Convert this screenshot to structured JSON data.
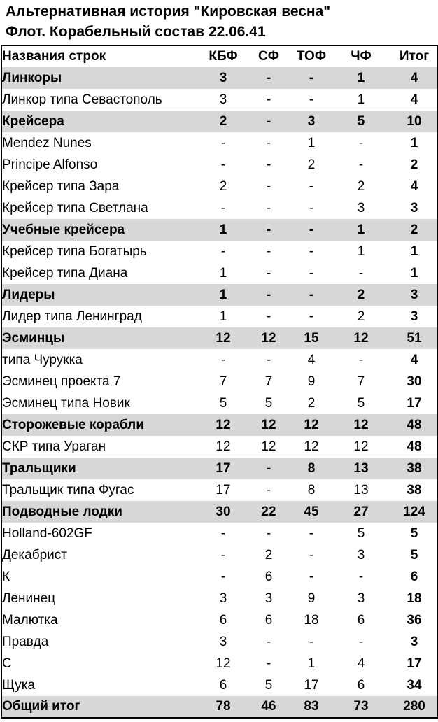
{
  "title": "Альтернативная история \"Кировская весна\"",
  "subtitle": "Флот. Корабельный состав 22.06.41",
  "colors": {
    "band_background": "#d7d7d7",
    "table_border": "#000000",
    "text": "#000000",
    "page_background": "#ffffff"
  },
  "table": {
    "header": [
      "Названия строк",
      "КБФ",
      "СФ",
      "ТОФ",
      "ЧФ",
      "Итог"
    ],
    "rows": [
      {
        "label": "Линкоры",
        "group": true,
        "values": [
          "3",
          "-",
          "-",
          "1",
          "4"
        ]
      },
      {
        "label": "Линкор типа Севастополь",
        "group": false,
        "values": [
          "3",
          "-",
          "-",
          "1",
          "4"
        ]
      },
      {
        "label": "Крейсера",
        "group": true,
        "values": [
          "2",
          "-",
          "3",
          "5",
          "10"
        ]
      },
      {
        "label": "Mendez Nunes",
        "group": false,
        "values": [
          "-",
          "-",
          "1",
          "-",
          "1"
        ]
      },
      {
        "label": "Principe Alfonso",
        "group": false,
        "values": [
          "-",
          "-",
          "2",
          "-",
          "2"
        ]
      },
      {
        "label": "Крейсер типа Зара",
        "group": false,
        "values": [
          "2",
          "-",
          "-",
          "2",
          "4"
        ]
      },
      {
        "label": "Крейсер типа Светлана",
        "group": false,
        "values": [
          "-",
          "-",
          "-",
          "3",
          "3"
        ]
      },
      {
        "label": "Учебные крейсера",
        "group": true,
        "values": [
          "1",
          "-",
          "-",
          "1",
          "2"
        ]
      },
      {
        "label": "Крейсер типа Богатырь",
        "group": false,
        "values": [
          "-",
          "-",
          "-",
          "1",
          "1"
        ]
      },
      {
        "label": "Крейсер типа Диана",
        "group": false,
        "values": [
          "1",
          "-",
          "-",
          "-",
          "1"
        ]
      },
      {
        "label": "Лидеры",
        "group": true,
        "values": [
          "1",
          "-",
          "-",
          "2",
          "3"
        ]
      },
      {
        "label": "Лидер типа Ленинград",
        "group": false,
        "values": [
          "1",
          "-",
          "-",
          "2",
          "3"
        ]
      },
      {
        "label": "Эсминцы",
        "group": true,
        "values": [
          "12",
          "12",
          "15",
          "12",
          "51"
        ]
      },
      {
        "label": "типа Чурукка",
        "group": false,
        "values": [
          "-",
          "-",
          "4",
          "-",
          "4"
        ]
      },
      {
        "label": "Эсминец проекта 7",
        "group": false,
        "values": [
          "7",
          "7",
          "9",
          "7",
          "30"
        ]
      },
      {
        "label": "Эсминец типа Новик",
        "group": false,
        "values": [
          "5",
          "5",
          "2",
          "5",
          "17"
        ]
      },
      {
        "label": "Сторожевые корабли",
        "group": true,
        "values": [
          "12",
          "12",
          "12",
          "12",
          "48"
        ]
      },
      {
        "label": "СКР типа Ураган",
        "group": false,
        "values": [
          "12",
          "12",
          "12",
          "12",
          "48"
        ]
      },
      {
        "label": "Тральщики",
        "group": true,
        "values": [
          "17",
          "-",
          "8",
          "13",
          "38"
        ]
      },
      {
        "label": "Тральщик типа Фугас",
        "group": false,
        "values": [
          "17",
          "-",
          "8",
          "13",
          "38"
        ]
      },
      {
        "label": "Подводные лодки",
        "group": true,
        "values": [
          "30",
          "22",
          "45",
          "27",
          "124"
        ]
      },
      {
        "label": "Holland-602GF",
        "group": false,
        "values": [
          "-",
          "-",
          "-",
          "5",
          "5"
        ]
      },
      {
        "label": "Декабрист",
        "group": false,
        "values": [
          "-",
          "2",
          "-",
          "3",
          "5"
        ]
      },
      {
        "label": "К",
        "group": false,
        "values": [
          "-",
          "6",
          "-",
          "-",
          "6"
        ]
      },
      {
        "label": "Ленинец",
        "group": false,
        "values": [
          "3",
          "3",
          "9",
          "3",
          "18"
        ]
      },
      {
        "label": "Малютка",
        "group": false,
        "values": [
          "6",
          "6",
          "18",
          "6",
          "36"
        ]
      },
      {
        "label": "Правда",
        "group": false,
        "values": [
          "3",
          "-",
          "-",
          "-",
          "3"
        ]
      },
      {
        "label": "С",
        "group": false,
        "values": [
          "12",
          "-",
          "1",
          "4",
          "17"
        ]
      },
      {
        "label": "Щука",
        "group": false,
        "values": [
          "6",
          "5",
          "17",
          "6",
          "34"
        ]
      },
      {
        "label": "Общий итог",
        "group": true,
        "values": [
          "78",
          "46",
          "83",
          "73",
          "280"
        ]
      }
    ]
  }
}
